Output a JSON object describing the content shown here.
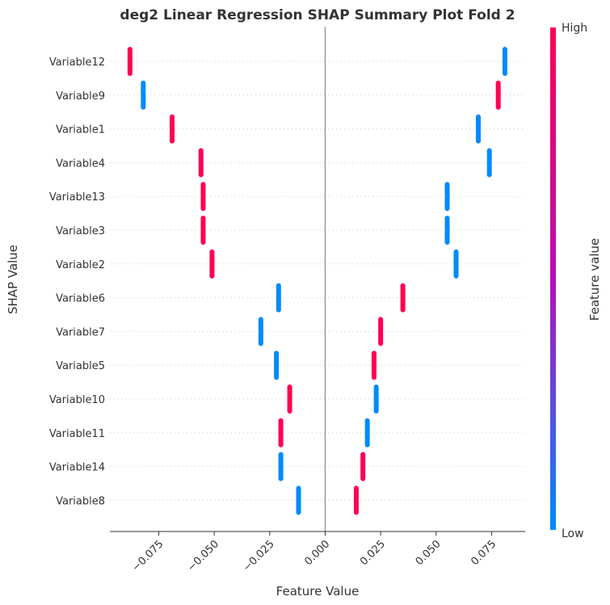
{
  "chart_data": {
    "type": "scatter",
    "title": "deg2 Linear Regression SHAP Summary Plot Fold 2",
    "xlabel": "Feature Value",
    "ylabel": "SHAP Value",
    "xlim": [
      -0.095,
      0.09
    ],
    "x_ticks": [
      -0.075,
      -0.05,
      -0.025,
      0.0,
      0.025,
      0.05,
      0.075
    ],
    "x_tick_labels": [
      "−0.075",
      "−0.050",
      "−0.025",
      "0.000",
      "0.025",
      "0.050",
      "0.075"
    ],
    "grid": false,
    "colorbar": {
      "label": "Feature value",
      "high_label": "High",
      "low_label": "Low",
      "high_color": "#ff0052",
      "mid_color": "#b50fb7",
      "low_color": "#008bfb"
    },
    "features": [
      {
        "name": "Variable12",
        "low_shap": 0.081,
        "high_shap": -0.088
      },
      {
        "name": "Variable9",
        "low_shap": -0.082,
        "high_shap": 0.078
      },
      {
        "name": "Variable1",
        "low_shap": 0.069,
        "high_shap": -0.069
      },
      {
        "name": "Variable4",
        "low_shap": 0.074,
        "high_shap": -0.056
      },
      {
        "name": "Variable13",
        "low_shap": 0.055,
        "high_shap": -0.055
      },
      {
        "name": "Variable3",
        "low_shap": 0.055,
        "high_shap": -0.055
      },
      {
        "name": "Variable2",
        "low_shap": 0.059,
        "high_shap": -0.051
      },
      {
        "name": "Variable6",
        "low_shap": -0.021,
        "high_shap": 0.035
      },
      {
        "name": "Variable7",
        "low_shap": -0.029,
        "high_shap": 0.025
      },
      {
        "name": "Variable5",
        "low_shap": -0.022,
        "high_shap": 0.022
      },
      {
        "name": "Variable10",
        "low_shap": 0.023,
        "high_shap": -0.016
      },
      {
        "name": "Variable11",
        "low_shap": 0.019,
        "high_shap": -0.02
      },
      {
        "name": "Variable14",
        "low_shap": -0.02,
        "high_shap": 0.017
      },
      {
        "name": "Variable8",
        "low_shap": -0.012,
        "high_shap": 0.014
      }
    ]
  }
}
